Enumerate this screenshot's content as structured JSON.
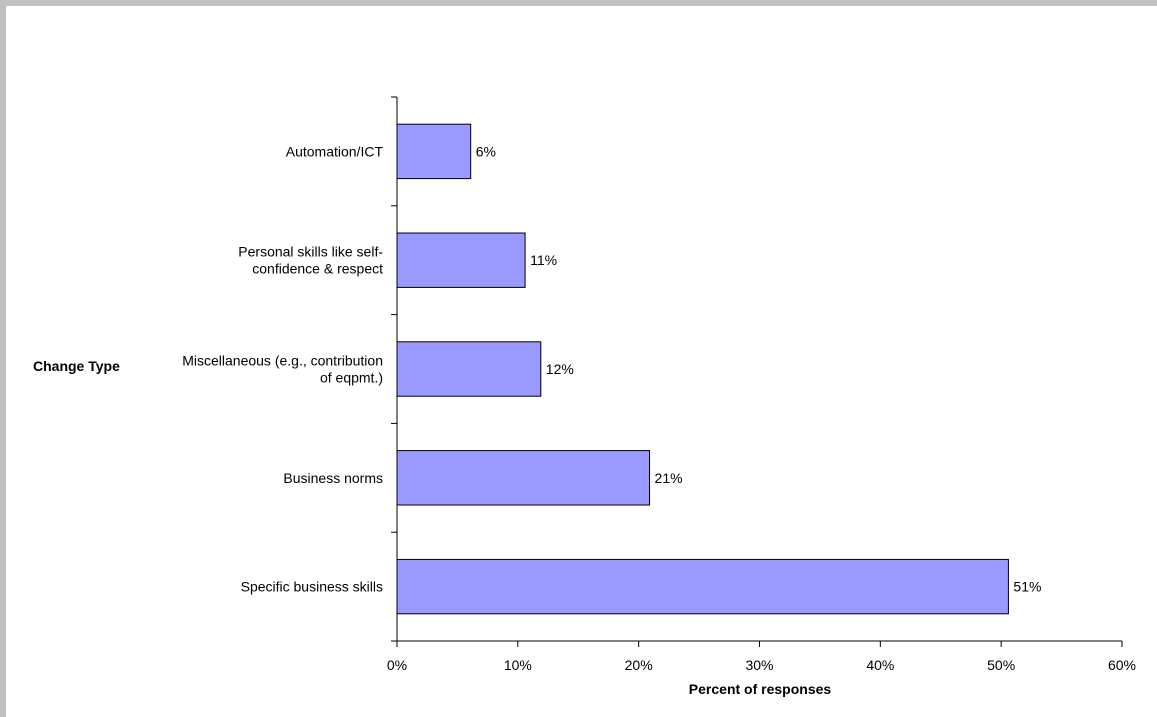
{
  "chart_data": {
    "type": "bar",
    "orientation": "horizontal",
    "categories": [
      "Automation/ICT",
      "Personal skills like self-confidence & respect",
      "Miscellaneous (e.g., contribution of eqpmt.)",
      "Business norms",
      "Specific business skills"
    ],
    "category_lines": [
      [
        "Automation/ICT"
      ],
      [
        "Personal skills like self-",
        "confidence & respect"
      ],
      [
        "Miscellaneous (e.g., contribution",
        "of eqpmt.)"
      ],
      [
        "Business norms"
      ],
      [
        "Specific business skills"
      ]
    ],
    "values": [
      6.1,
      10.6,
      11.9,
      20.9,
      50.6
    ],
    "data_labels": [
      "6%",
      "11%",
      "12%",
      "21%",
      "51%"
    ],
    "xlabel": "Percent of responses",
    "ylabel": "Change Type",
    "xlim": [
      0,
      60
    ],
    "xticks": [
      0,
      10,
      20,
      30,
      40,
      50,
      60
    ],
    "xtick_labels": [
      "0%",
      "10%",
      "20%",
      "30%",
      "40%",
      "50%",
      "60%"
    ],
    "grid": false,
    "legend": "none",
    "bar_color": "#9999ff",
    "bar_edge_color": "#000000",
    "frame_color": "#c0c0c0"
  }
}
